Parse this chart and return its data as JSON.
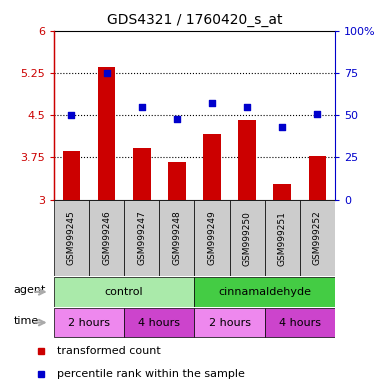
{
  "title": "GDS4321 / 1760420_s_at",
  "samples": [
    "GSM999245",
    "GSM999246",
    "GSM999247",
    "GSM999248",
    "GSM999249",
    "GSM999250",
    "GSM999251",
    "GSM999252"
  ],
  "bar_values": [
    3.87,
    5.35,
    3.92,
    3.67,
    4.17,
    4.42,
    3.28,
    3.77
  ],
  "percentile_values": [
    50,
    75,
    55,
    48,
    57,
    55,
    43,
    51
  ],
  "ylim_left": [
    3.0,
    6.0
  ],
  "yticks_left": [
    3.0,
    3.75,
    4.5,
    5.25,
    6.0
  ],
  "ytick_left_labels": [
    "3",
    "3.75",
    "4.5",
    "5.25",
    "6"
  ],
  "yticks_right": [
    0,
    25,
    50,
    75,
    100
  ],
  "ytick_right_labels": [
    "0",
    "25",
    "50",
    "75",
    "100%"
  ],
  "bar_color": "#cc0000",
  "dot_color": "#0000cc",
  "agent_row": [
    {
      "label": "control",
      "start": 0,
      "end": 4,
      "color": "#aaeaaa"
    },
    {
      "label": "cinnamaldehyde",
      "start": 4,
      "end": 8,
      "color": "#44cc44"
    }
  ],
  "time_row": [
    {
      "label": "2 hours",
      "start": 0,
      "end": 2,
      "color": "#ee88ee"
    },
    {
      "label": "4 hours",
      "start": 2,
      "end": 4,
      "color": "#cc44cc"
    },
    {
      "label": "2 hours",
      "start": 4,
      "end": 6,
      "color": "#ee88ee"
    },
    {
      "label": "4 hours",
      "start": 6,
      "end": 8,
      "color": "#cc44cc"
    }
  ],
  "sample_bg_color": "#cccccc",
  "legend_red_label": "transformed count",
  "legend_blue_label": "percentile rank within the sample",
  "agent_label": "agent",
  "time_label": "time",
  "left_axis_color": "#cc0000",
  "right_axis_color": "#0000cc",
  "arrow_color": "#aaaaaa"
}
